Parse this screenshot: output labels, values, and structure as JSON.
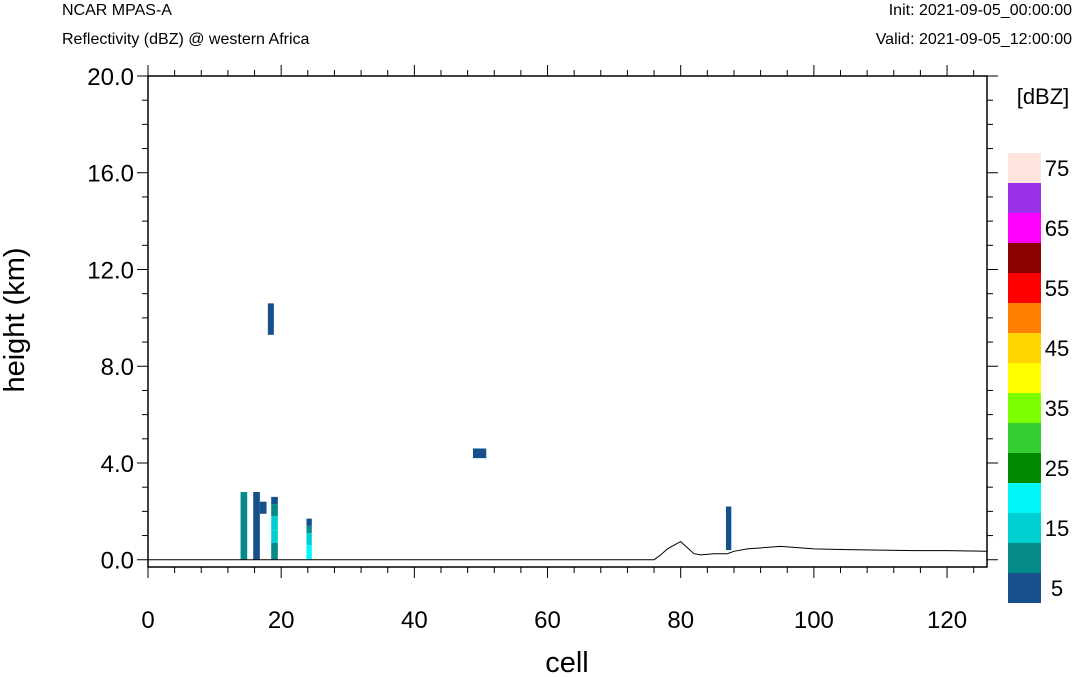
{
  "header": {
    "left_line1": "NCAR MPAS-A",
    "left_line2": "Reflectivity (dBZ) @ western Africa",
    "right_line1": "Init: 2021-09-05_00:00:00",
    "right_line2": "Valid: 2021-09-05_12:00:00"
  },
  "chart_data": {
    "type": "heatmap",
    "xlabel": "cell",
    "ylabel": "height (km)",
    "xlim": [
      0,
      126
    ],
    "ylim": [
      -0.3,
      20
    ],
    "x_ticks": [
      0,
      20,
      40,
      60,
      80,
      100,
      120
    ],
    "x_tick_labels": [
      "0",
      "20",
      "40",
      "60",
      "80",
      "100",
      "120"
    ],
    "y_ticks": [
      0,
      4,
      8,
      12,
      16,
      20
    ],
    "y_tick_labels": [
      "0.0",
      "4.0",
      "8.0",
      "12.0",
      "16.0",
      "20.0"
    ],
    "grid": false,
    "colorbar": {
      "title": "[dBZ]",
      "levels": [
        5,
        10,
        15,
        20,
        25,
        30,
        35,
        40,
        45,
        50,
        55,
        60,
        65,
        70,
        75
      ],
      "colors": [
        "#15508c",
        "#058a8a",
        "#00cfd2",
        "#00f8f8",
        "#008800",
        "#33cc33",
        "#7dff00",
        "#ffff00",
        "#ffd400",
        "#ff7f00",
        "#ff0000",
        "#8b0000",
        "#ff00ff",
        "#9932e8",
        "#ffe4dd"
      ],
      "labels": [
        "5",
        "15",
        "25",
        "35",
        "45",
        "55",
        "65",
        "75"
      ]
    },
    "cells": [
      {
        "x0": 13.9,
        "x1": 14.9,
        "y0": 0.0,
        "y1": 2.8,
        "dbz": 10
      },
      {
        "x0": 15.8,
        "x1": 16.8,
        "y0": 0.0,
        "y1": 2.8,
        "dbz": 5
      },
      {
        "x0": 16.8,
        "x1": 17.8,
        "y0": 1.9,
        "y1": 2.4,
        "dbz": 5
      },
      {
        "x0": 18.0,
        "x1": 18.9,
        "y0": 9.3,
        "y1": 10.6,
        "dbz": 5
      },
      {
        "x0": 18.5,
        "x1": 19.5,
        "y0": 2.3,
        "y1": 2.6,
        "dbz": 5
      },
      {
        "x0": 18.5,
        "x1": 19.5,
        "y0": 1.8,
        "y1": 2.3,
        "dbz": 10
      },
      {
        "x0": 18.5,
        "x1": 19.5,
        "y0": 1.2,
        "y1": 1.8,
        "dbz": 15
      },
      {
        "x0": 18.5,
        "x1": 19.5,
        "y0": 0.7,
        "y1": 1.2,
        "dbz": 15
      },
      {
        "x0": 18.5,
        "x1": 19.5,
        "y0": 0.0,
        "y1": 0.7,
        "dbz": 10
      },
      {
        "x0": 23.8,
        "x1": 24.6,
        "y0": 1.4,
        "y1": 1.7,
        "dbz": 5
      },
      {
        "x0": 23.8,
        "x1": 24.6,
        "y0": 1.1,
        "y1": 1.4,
        "dbz": 10
      },
      {
        "x0": 23.8,
        "x1": 24.6,
        "y0": 0.6,
        "y1": 1.1,
        "dbz": 15
      },
      {
        "x0": 23.8,
        "x1": 24.6,
        "y0": 0.0,
        "y1": 0.6,
        "dbz": 20
      },
      {
        "x0": 48.8,
        "x1": 50.8,
        "y0": 4.2,
        "y1": 4.6,
        "dbz": 5
      },
      {
        "x0": 86.8,
        "x1": 87.6,
        "y0": 0.4,
        "y1": 2.2,
        "dbz": 5
      }
    ],
    "terrain": {
      "x": [
        0,
        76,
        77,
        78,
        79,
        80,
        81,
        82,
        83,
        85,
        87,
        88,
        90,
        95,
        100,
        105,
        110,
        115,
        120,
        126
      ],
      "y": [
        0,
        0,
        0.2,
        0.45,
        0.6,
        0.75,
        0.5,
        0.25,
        0.2,
        0.25,
        0.25,
        0.35,
        0.45,
        0.55,
        0.45,
        0.42,
        0.4,
        0.38,
        0.38,
        0.35
      ]
    }
  }
}
